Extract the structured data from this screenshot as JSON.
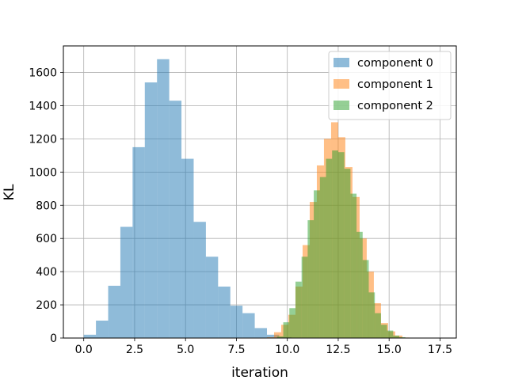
{
  "chart_data": {
    "type": "histogram",
    "title": "",
    "xlabel": "iteration",
    "ylabel": "KL",
    "xlim": [
      -1.0,
      18.3
    ],
    "ylim": [
      0,
      1760
    ],
    "xticks": [
      "0.0",
      "2.5",
      "5.0",
      "7.5",
      "10.0",
      "12.5",
      "15.0",
      "17.5"
    ],
    "xtick_values": [
      0,
      2.5,
      5,
      7.5,
      10,
      12.5,
      15,
      17.5
    ],
    "yticks": [
      "0",
      "200",
      "400",
      "600",
      "800",
      "1000",
      "1200",
      "1400",
      "1600"
    ],
    "ytick_values": [
      0,
      200,
      400,
      600,
      800,
      1000,
      1200,
      1400,
      1600
    ],
    "grid": true,
    "legend_position": "top-right",
    "series": [
      {
        "name": "component 0",
        "color": "#1f77b4",
        "bin_start": 0.0,
        "bin_width": 0.6,
        "values": [
          20,
          105,
          315,
          670,
          1150,
          1540,
          1680,
          1430,
          1080,
          700,
          490,
          310,
          195,
          150,
          60,
          20,
          5
        ]
      },
      {
        "name": "component 1",
        "color": "#ff7f0e",
        "bin_start": 9.0,
        "bin_width": 0.35,
        "values": [
          5,
          35,
          80,
          140,
          310,
          560,
          820,
          1040,
          1200,
          1300,
          1210,
          1030,
          850,
          600,
          400,
          210,
          90,
          40,
          15,
          3,
          1
        ]
      },
      {
        "name": "component 2",
        "color": "#2ca02c",
        "bin_start": 9.5,
        "bin_width": 0.3,
        "values": [
          10,
          95,
          180,
          340,
          490,
          710,
          890,
          970,
          1080,
          1130,
          1120,
          1020,
          870,
          640,
          470,
          275,
          150,
          80,
          45,
          15,
          5
        ]
      }
    ]
  }
}
